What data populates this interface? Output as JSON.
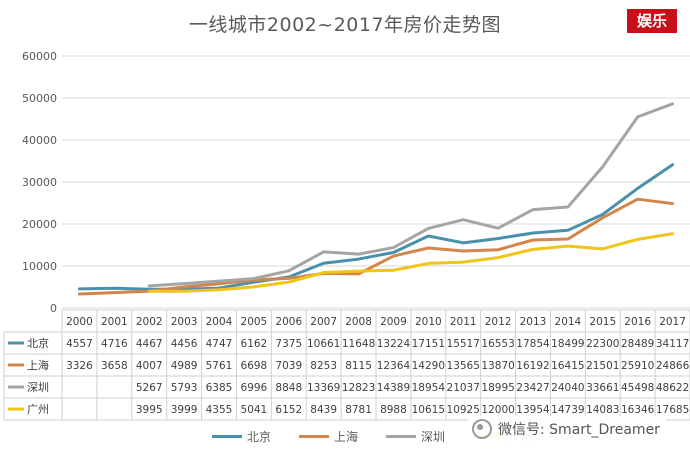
{
  "title": "一线城市2002~2017年房价走势图",
  "badge": "娱乐",
  "watermark": "微信号: Smart_Dreamer",
  "chart_data": {
    "type": "line",
    "title": "一线城市2002~2017年房价走势图",
    "categories": [
      "2000",
      "2001",
      "2002",
      "2003",
      "2004",
      "2005",
      "2006",
      "2007",
      "2008",
      "2009",
      "2010",
      "2011",
      "2012",
      "2013",
      "2014",
      "2015",
      "2016",
      "2017"
    ],
    "y_ticks": [
      "0",
      "10000",
      "20000",
      "30000",
      "40000",
      "50000",
      "60000"
    ],
    "ylim": [
      0,
      60000
    ],
    "grid": true,
    "legend_position": "bottom",
    "series": [
      {
        "name": "北京",
        "color": "#4a90ad",
        "values": [
          4557,
          4716,
          4467,
          4456,
          4747,
          6162,
          7375,
          10661,
          11648,
          13224,
          17151,
          15517,
          16553,
          17854,
          18499,
          22300,
          28489,
          34117
        ],
        "labels": [
          "4557",
          "4716",
          "4467",
          "4456",
          "4747",
          "6162",
          "7375",
          "10661",
          "11648",
          "13224",
          "17151",
          "15517",
          "16553",
          "17854",
          "18499",
          "22300",
          "28489",
          "34117"
        ]
      },
      {
        "name": "上海",
        "color": "#d4854a",
        "values": [
          3326,
          3658,
          4007,
          4989,
          5761,
          6698,
          7039,
          8253,
          8115,
          12364,
          14290,
          13565,
          13870,
          16192,
          16415,
          21501,
          25910,
          24866
        ],
        "labels": [
          "3326",
          "3658",
          "4007",
          "4989",
          "5761",
          "6698",
          "7039",
          "8253",
          "8115",
          "12364",
          "14290",
          "13565",
          "13870",
          "16192",
          "16415",
          "21501",
          "25910",
          "24866"
        ]
      },
      {
        "name": "深圳",
        "color": "#a5a5a5",
        "values": [
          null,
          null,
          5267,
          5793,
          6385,
          6996,
          8848,
          13369,
          12823,
          14389,
          18954,
          21037,
          18995,
          23427,
          24040,
          33661,
          45498,
          48622
        ],
        "labels": [
          "",
          "",
          "5267",
          "5793",
          "6385",
          "6996",
          "8848",
          "13369",
          "12823",
          "14389",
          "18954",
          "21037",
          "18995",
          "23427",
          "24040",
          "33661",
          "45498",
          "48622"
        ]
      },
      {
        "name": "广州",
        "color": "#f0c419",
        "values": [
          null,
          null,
          3995,
          3999,
          4355,
          5041,
          6152,
          8439,
          8781,
          8988,
          10615,
          10925,
          12000,
          13954,
          14739,
          14083,
          16346,
          17685
        ],
        "labels": [
          "",
          "",
          "3995",
          "3999",
          "4355",
          "5041",
          "6152",
          "8439",
          "8781",
          "8988",
          "10615",
          "10925",
          "12000",
          "13954",
          "14739",
          "14083",
          "16346",
          "17685"
        ]
      }
    ]
  }
}
